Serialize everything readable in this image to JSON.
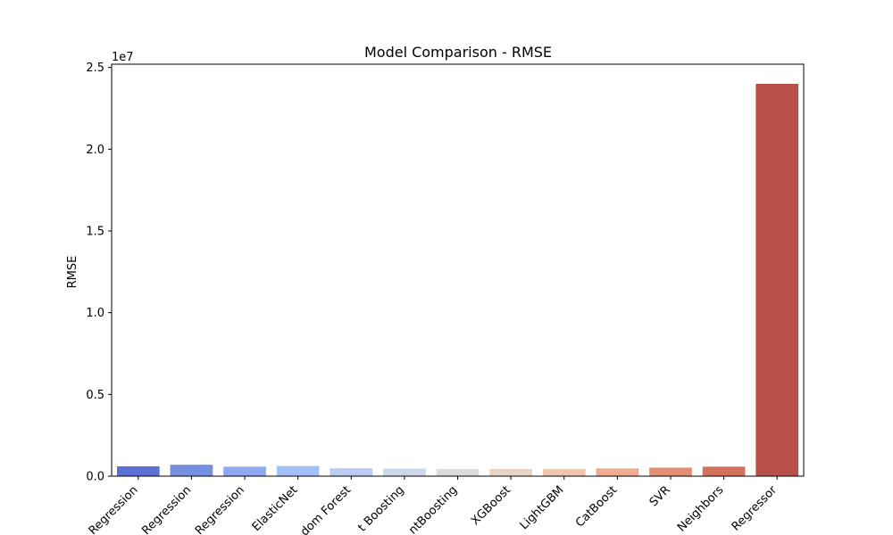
{
  "chart_data": {
    "type": "bar",
    "title": "Model Comparison - RMSE",
    "xlabel": "",
    "ylabel": "RMSE",
    "y_scale_label": "1e7",
    "ylim": [
      0,
      2.52
    ],
    "y_ticks": [
      0.0,
      0.5,
      1.0,
      1.5,
      2.0,
      2.5
    ],
    "y_tick_labels": [
      "0.0",
      "0.5",
      "1.0",
      "1.5",
      "2.0",
      "2.5"
    ],
    "categories": [
      "Regression",
      "Regression",
      "Regression",
      "ElasticNet",
      "dom Forest",
      "t Boosting",
      "ntBoosting",
      "XGBoost",
      "LightGBM",
      "CatBoost",
      "SVR",
      "Neighbors",
      "Regressor"
    ],
    "values": [
      0.06,
      0.07,
      0.058,
      0.062,
      0.048,
      0.046,
      0.044,
      0.044,
      0.043,
      0.047,
      0.052,
      0.058,
      2.4
    ],
    "colors": [
      "#5b71d3",
      "#7690e0",
      "#8ea9f0",
      "#a4c0f9",
      "#b9cdf4",
      "#cdd7ec",
      "#dcdcdc",
      "#e9d4c8",
      "#f0c3ac",
      "#eeab90",
      "#e38f74",
      "#d2725c",
      "#b85249"
    ],
    "grid": false,
    "legend": "none"
  }
}
